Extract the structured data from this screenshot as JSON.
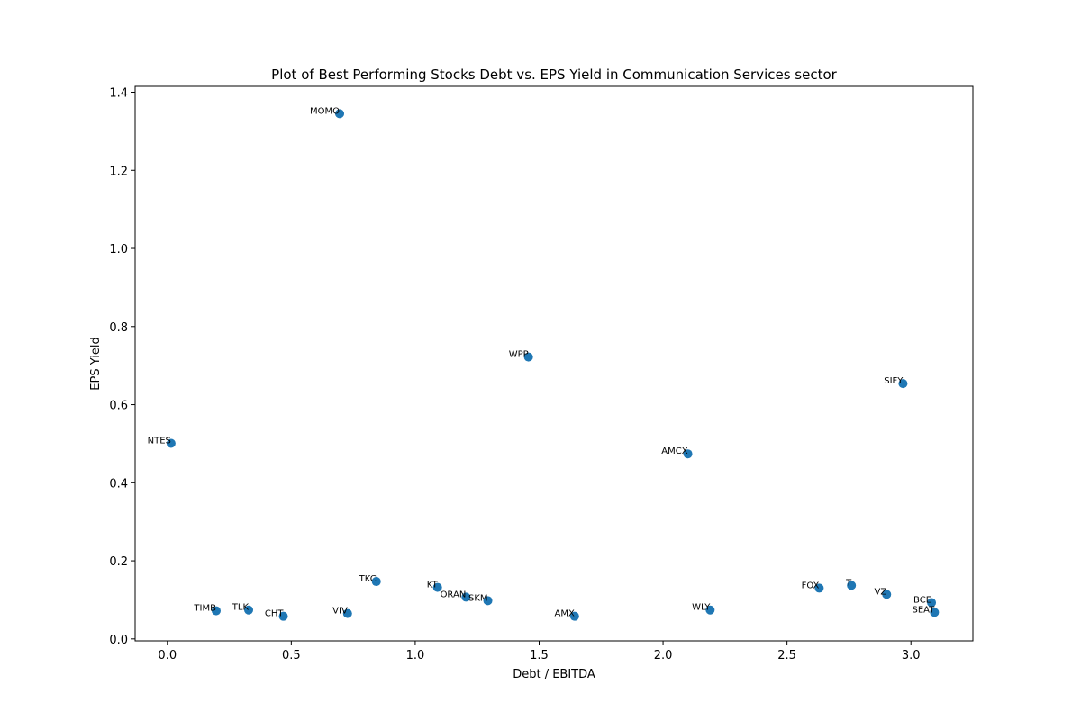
{
  "chart_data": {
    "type": "scatter",
    "title": "Plot of Best Performing Stocks Debt vs. EPS Yield in Communication Services sector",
    "xlabel": "Debt / EBITDA",
    "ylabel": "EPS Yield",
    "xlim": [
      -0.13,
      3.25
    ],
    "ylim": [
      -0.005,
      1.415
    ],
    "xticks": [
      0.0,
      0.5,
      1.0,
      1.5,
      2.0,
      2.5,
      3.0
    ],
    "yticks": [
      0.0,
      0.2,
      0.4,
      0.6,
      0.8,
      1.0,
      1.2,
      1.4
    ],
    "grid": false,
    "marker_color": "#1f77b4",
    "points": [
      {
        "label": "MOMO",
        "x": 0.695,
        "y": 1.345
      },
      {
        "label": "WPP",
        "x": 1.457,
        "y": 0.722
      },
      {
        "label": "SIFY",
        "x": 2.968,
        "y": 0.654
      },
      {
        "label": "NTES",
        "x": 0.015,
        "y": 0.501
      },
      {
        "label": "AMCX",
        "x": 2.1,
        "y": 0.474
      },
      {
        "label": "TKC",
        "x": 0.843,
        "y": 0.147
      },
      {
        "label": "KT",
        "x": 1.09,
        "y": 0.132
      },
      {
        "label": "ORAN",
        "x": 1.205,
        "y": 0.107
      },
      {
        "label": "SKM",
        "x": 1.293,
        "y": 0.098
      },
      {
        "label": "FOX",
        "x": 2.63,
        "y": 0.13
      },
      {
        "label": "T",
        "x": 2.76,
        "y": 0.137
      },
      {
        "label": "VZ",
        "x": 2.902,
        "y": 0.114
      },
      {
        "label": "BCE",
        "x": 3.083,
        "y": 0.093
      },
      {
        "label": "SEAT",
        "x": 3.095,
        "y": 0.068
      },
      {
        "label": "TIMB",
        "x": 0.197,
        "y": 0.072
      },
      {
        "label": "TLK",
        "x": 0.328,
        "y": 0.074
      },
      {
        "label": "CHT",
        "x": 0.468,
        "y": 0.058
      },
      {
        "label": "VIV",
        "x": 0.727,
        "y": 0.065
      },
      {
        "label": "AMX",
        "x": 1.643,
        "y": 0.058
      },
      {
        "label": "WLY",
        "x": 2.19,
        "y": 0.074
      }
    ]
  }
}
